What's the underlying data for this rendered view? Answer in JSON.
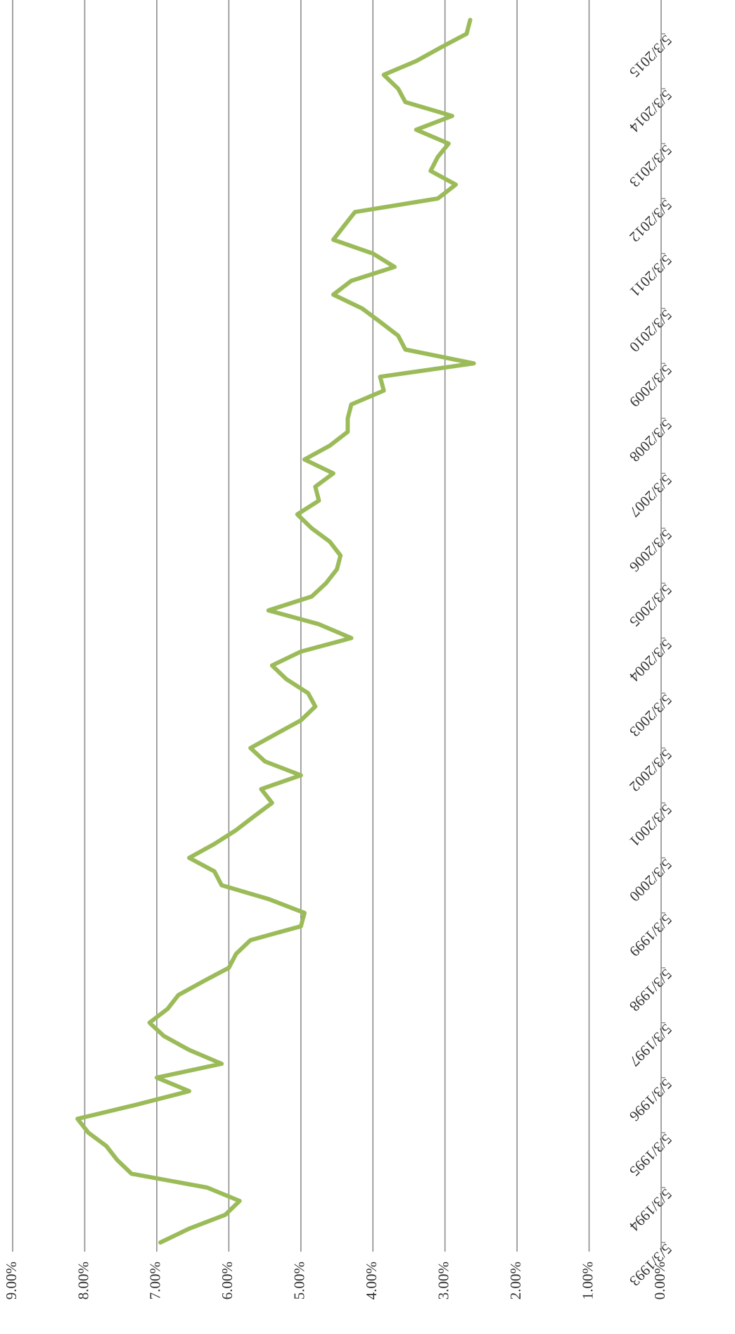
{
  "chart_data": {
    "type": "line",
    "title": "",
    "xlabel": "",
    "ylabel": "",
    "orientation": "rotated-90-clockwise",
    "grid": true,
    "ylim": [
      0,
      9
    ],
    "y_ticks": [
      "0.00%",
      "1.00%",
      "2.00%",
      "3.00%",
      "4.00%",
      "5.00%",
      "6.00%",
      "7.00%",
      "8.00%",
      "9.00%"
    ],
    "x_ticks": [
      "5/3/1993",
      "5/3/1994",
      "5/3/1995",
      "5/3/1996",
      "5/3/1997",
      "5/3/1998",
      "5/3/1999",
      "5/3/2000",
      "5/3/2001",
      "5/3/2002",
      "5/3/2003",
      "5/3/2004",
      "5/3/2005",
      "5/3/2006",
      "5/3/2007",
      "5/3/2008",
      "5/3/2009",
      "5/3/2010",
      "5/3/2011",
      "5/3/2012",
      "5/3/2013",
      "5/3/2014",
      "5/3/2015"
    ],
    "line_color": "#9BBB59",
    "series": [
      {
        "x": [
          "5/3/1993",
          "8/3/1993",
          "11/3/1993",
          "2/3/1994",
          "5/3/1994",
          "8/3/1994",
          "11/3/1994",
          "2/3/1995",
          "5/3/1995",
          "8/3/1995",
          "11/3/1995",
          "2/3/1996",
          "5/3/1996",
          "8/3/1996",
          "11/3/1996",
          "2/3/1997",
          "5/3/1997",
          "8/3/1997",
          "11/3/1997",
          "2/3/1998",
          "5/3/1998",
          "8/3/1998",
          "11/3/1998",
          "2/3/1999",
          "5/3/1999",
          "8/3/1999",
          "11/3/1999",
          "2/3/2000",
          "5/3/2000",
          "8/3/2000",
          "11/3/2000",
          "2/3/2001",
          "5/3/2001",
          "8/3/2001",
          "11/3/2001",
          "2/3/2002",
          "5/3/2002",
          "8/3/2002",
          "11/3/2002",
          "2/3/2003",
          "5/3/2003",
          "8/3/2003",
          "11/3/2003",
          "2/3/2004",
          "5/3/2004",
          "8/3/2004",
          "11/3/2004",
          "2/3/2005",
          "5/3/2005",
          "8/3/2005",
          "11/3/2005",
          "2/3/2006",
          "5/3/2006",
          "8/3/2006",
          "11/3/2006",
          "2/3/2007",
          "5/3/2007",
          "8/3/2007",
          "11/3/2007",
          "2/3/2008",
          "5/3/2008",
          "8/3/2008",
          "11/3/2008",
          "2/3/2009",
          "5/3/2009",
          "8/3/2009",
          "11/3/2009",
          "2/3/2010",
          "5/3/2010",
          "8/3/2010",
          "11/3/2010",
          "2/3/2011",
          "5/3/2011",
          "8/3/2011",
          "11/3/2011",
          "2/3/2012",
          "5/3/2012",
          "8/3/2012",
          "11/3/2012",
          "2/3/2013",
          "5/3/2013",
          "8/3/2013",
          "11/3/2013",
          "2/3/2014",
          "5/3/2014",
          "8/3/2014",
          "11/3/2014",
          "2/3/2015",
          "5/3/2015",
          "8/3/2015"
        ],
        "values": [
          6.95,
          6.55,
          6.05,
          5.85,
          6.3,
          7.35,
          7.55,
          7.7,
          7.95,
          8.1,
          7.3,
          6.55,
          7.0,
          6.1,
          6.55,
          6.9,
          7.1,
          6.85,
          6.7,
          6.35,
          6.0,
          5.9,
          5.7,
          5.0,
          4.95,
          5.45,
          6.1,
          6.2,
          6.55,
          6.2,
          5.9,
          5.65,
          5.4,
          5.55,
          5.0,
          5.5,
          5.7,
          5.35,
          5.0,
          4.8,
          4.9,
          5.2,
          5.4,
          5.0,
          4.3,
          4.75,
          5.45,
          4.85,
          4.65,
          4.5,
          4.45,
          4.6,
          4.85,
          5.05,
          4.75,
          4.8,
          4.55,
          4.95,
          4.6,
          4.35,
          4.35,
          4.3,
          3.85,
          3.9,
          2.6,
          3.55,
          3.65,
          3.9,
          4.15,
          4.55,
          4.3,
          3.7,
          4.0,
          4.55,
          4.4,
          4.25,
          3.1,
          2.85,
          3.2,
          3.1,
          2.95,
          3.4,
          2.9,
          3.55,
          3.65,
          3.85,
          3.4,
          3.05,
          2.7,
          2.65
        ]
      }
    ]
  }
}
